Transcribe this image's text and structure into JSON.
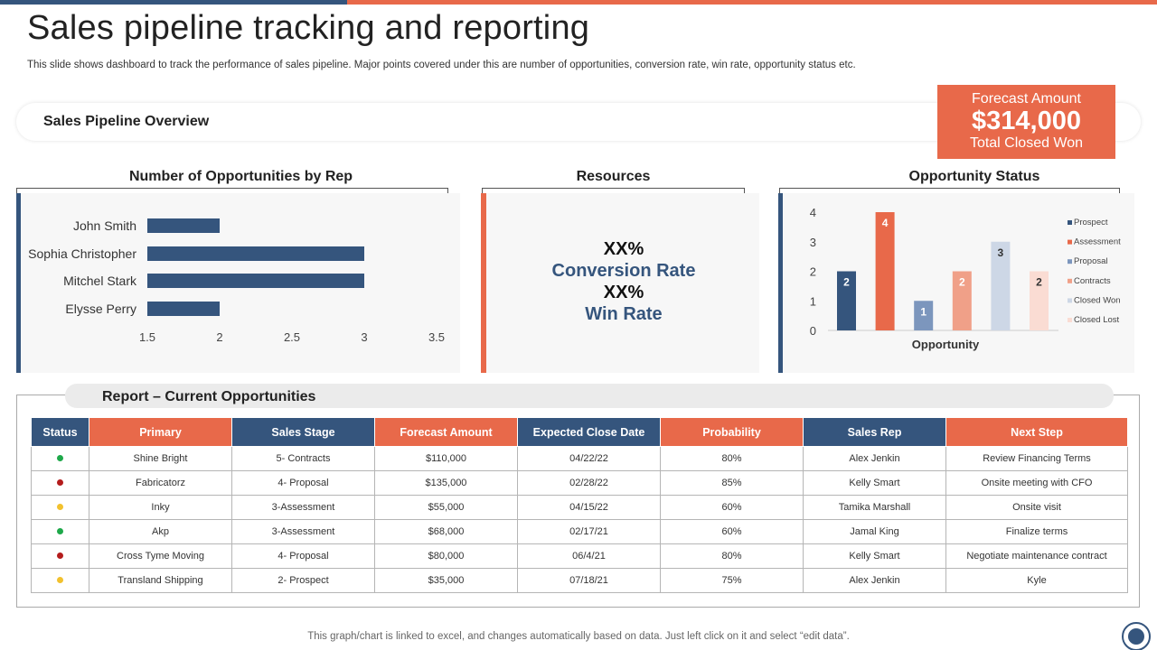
{
  "page": {
    "title": "Sales pipeline tracking and reporting",
    "subtitle": "This slide shows dashboard to track the performance of sales pipeline. Major points covered under this are number of opportunities, conversion rate, win rate, opportunity status etc.",
    "footer_note": "This graph/chart is linked to excel,  and changes automatically based on data. Just left click on it and select “edit data”."
  },
  "overview": {
    "label": "Sales Pipeline Overview"
  },
  "forecast": {
    "label": "Forecast Amount",
    "amount": "$314,000",
    "caption": "Total Closed Won"
  },
  "sections": {
    "opportunities_by_rep": "Number of Opportunities by Rep",
    "resources": "Resources",
    "opportunity_status": "Opportunity Status"
  },
  "resources": {
    "conversion_value": "XX%",
    "conversion_label": "Conversion Rate",
    "win_value": "XX%",
    "win_label": "Win Rate"
  },
  "colors": {
    "navy": "#35557d",
    "orange": "#e8694a"
  },
  "chart_data": [
    {
      "type": "bar",
      "orientation": "horizontal",
      "title": "Number of Opportunities by Rep",
      "categories": [
        "John Smith",
        "Sophia Christopher",
        "Mitchel Stark",
        "Elysse Perry"
      ],
      "values": [
        2,
        3,
        3,
        2
      ],
      "xlim": [
        1.5,
        3.5
      ],
      "ticks": [
        "1.5",
        "2",
        "2.5",
        "3",
        "3.5"
      ],
      "color": "#35557d"
    },
    {
      "type": "bar",
      "title": "Opportunity Status",
      "xlabel": "Opportunity",
      "ylim": [
        0,
        4
      ],
      "ticks": [
        "0",
        "1",
        "2",
        "3",
        "4"
      ],
      "categories": [
        "Prospect",
        "Assessment",
        "Proposal",
        "Contracts",
        "Closed Won",
        "Closed Lost"
      ],
      "values": [
        2,
        4,
        1,
        2,
        3,
        2
      ],
      "labels": [
        "2",
        "4",
        "1",
        "2",
        "3",
        "2"
      ],
      "colors": [
        "#35557d",
        "#e8694a",
        "#7c96bd",
        "#f0a088",
        "#cdd7e6",
        "#fadcd3"
      ],
      "legend": [
        "Prospect",
        "Assessment",
        "Proposal",
        "Contracts",
        "Closed Won",
        "Closed Lost"
      ],
      "legend_position": "right"
    }
  ],
  "report": {
    "title": "Report – Current Opportunities",
    "headers": [
      "Status",
      "Primary",
      "Sales Stage",
      "Forecast Amount",
      "Expected Close Date",
      "Probability",
      "Sales Rep",
      "Next Step"
    ],
    "rows": [
      {
        "status_color": "#1ea84a",
        "primary": "Shine Bright",
        "stage": "5- Contracts",
        "amount": "$110,000",
        "close": "04/22/22",
        "prob": "80%",
        "rep": "Alex Jenkin",
        "next": "Review Financing Terms"
      },
      {
        "status_color": "#b41c1c",
        "primary": "Fabricatorz",
        "stage": "4- Proposal",
        "amount": "$135,000",
        "close": "02/28/22",
        "prob": "85%",
        "rep": "Kelly Smart",
        "next": "Onsite meeting  with CFO"
      },
      {
        "status_color": "#f2c12e",
        "primary": "Inky",
        "stage": "3-Assessment",
        "amount": "$55,000",
        "close": "04/15/22",
        "prob": "60%",
        "rep": "Tamika  Marshall",
        "next": "Onsite visit"
      },
      {
        "status_color": "#1ea84a",
        "primary": "Akp",
        "stage": "3-Assessment",
        "amount": "$68,000",
        "close": "02/17/21",
        "prob": "60%",
        "rep": "Jamal King",
        "next": "Finalize terms"
      },
      {
        "status_color": "#b41c1c",
        "primary": "Cross Tyme Moving",
        "stage": "4- Proposal",
        "amount": "$80,000",
        "close": "06/4/21",
        "prob": "80%",
        "rep": "Kelly Smart",
        "next": "Negotiate maintenance contract"
      },
      {
        "status_color": "#f2c12e",
        "primary": "Transland Shipping",
        "stage": "2- Prospect",
        "amount": "$35,000",
        "close": "07/18/21",
        "prob": "75%",
        "rep": "Alex Jenkin",
        "next": "Kyle"
      }
    ]
  }
}
